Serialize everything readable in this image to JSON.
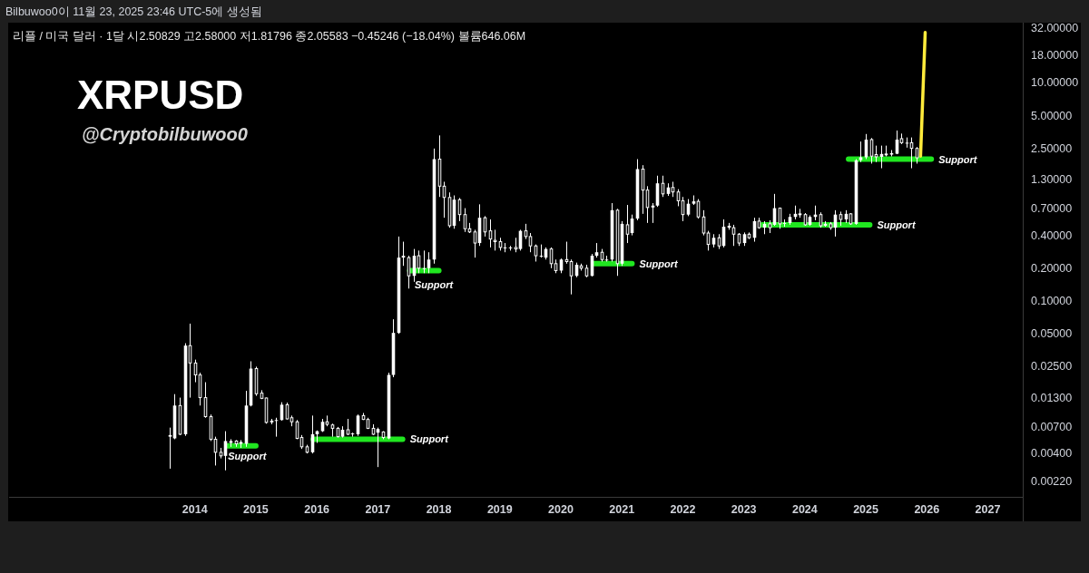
{
  "chart_data": {
    "type": "candlestick",
    "title": "XRPUSD",
    "subtitle": "@Cryptobilbuwoo0",
    "color": "#ffffff",
    "log": true,
    "xlim": [
      "2010-12-15",
      "2027-07-28"
    ],
    "xticks": [
      "2014",
      "2015",
      "2016",
      "2017",
      "2018",
      "2019",
      "2020",
      "2021",
      "2022",
      "2023",
      "2024",
      "2025",
      "2026",
      "2027"
    ],
    "ylim": [
      0.0016,
      35
    ],
    "yticks": [
      {
        "value": 0.0022,
        "label": "0.00220"
      },
      {
        "value": 0.004,
        "label": "0.00400"
      },
      {
        "value": 0.007,
        "label": "0.00700"
      },
      {
        "value": 0.013,
        "label": "0.01300"
      },
      {
        "value": 0.025,
        "label": "0.02500"
      },
      {
        "value": 0.05,
        "label": "0.05000"
      },
      {
        "value": 0.1,
        "label": "0.10000"
      },
      {
        "value": 0.2,
        "label": "0.20000"
      },
      {
        "value": 0.4,
        "label": "0.40000"
      },
      {
        "value": 0.7,
        "label": "0.70000"
      },
      {
        "value": 1.3,
        "label": "1.30000"
      },
      {
        "value": 2.5,
        "label": "2.50000"
      },
      {
        "value": 5,
        "label": "5.00000"
      },
      {
        "value": 10,
        "label": "10.00000"
      },
      {
        "value": 18,
        "label": "18.00000"
      },
      {
        "value": 32,
        "label": "32.00000"
      }
    ],
    "x": [
      "2013-08",
      "2013-09",
      "2013-10",
      "2013-11",
      "2013-12",
      "2014-01",
      "2014-02",
      "2014-03",
      "2014-04",
      "2014-05",
      "2014-06",
      "2014-07",
      "2014-08",
      "2014-09",
      "2014-10",
      "2014-11",
      "2014-12",
      "2015-01",
      "2015-02",
      "2015-03",
      "2015-04",
      "2015-05",
      "2015-06",
      "2015-07",
      "2015-08",
      "2015-09",
      "2015-10",
      "2015-11",
      "2015-12",
      "2016-01",
      "2016-02",
      "2016-03",
      "2016-04",
      "2016-05",
      "2016-06",
      "2016-07",
      "2016-08",
      "2016-09",
      "2016-10",
      "2016-11",
      "2016-12",
      "2017-01",
      "2017-02",
      "2017-03",
      "2017-04",
      "2017-05",
      "2017-06",
      "2017-07",
      "2017-08",
      "2017-09",
      "2017-10",
      "2017-11",
      "2017-12",
      "2018-01",
      "2018-02",
      "2018-03",
      "2018-04",
      "2018-05",
      "2018-06",
      "2018-07",
      "2018-08",
      "2018-09",
      "2018-10",
      "2018-11",
      "2018-12",
      "2019-01",
      "2019-02",
      "2019-03",
      "2019-04",
      "2019-05",
      "2019-06",
      "2019-07",
      "2019-08",
      "2019-09",
      "2019-10",
      "2019-11",
      "2019-12",
      "2020-01",
      "2020-02",
      "2020-03",
      "2020-04",
      "2020-05",
      "2020-06",
      "2020-07",
      "2020-08",
      "2020-09",
      "2020-10",
      "2020-11",
      "2020-12",
      "2021-01",
      "2021-02",
      "2021-03",
      "2021-04",
      "2021-05",
      "2021-06",
      "2021-07",
      "2021-08",
      "2021-09",
      "2021-10",
      "2021-11",
      "2021-12",
      "2022-01",
      "2022-02",
      "2022-03",
      "2022-04",
      "2022-05",
      "2022-06",
      "2022-07",
      "2022-08",
      "2022-09",
      "2022-10",
      "2022-11",
      "2022-12",
      "2023-01",
      "2023-02",
      "2023-03",
      "2023-04",
      "2023-05",
      "2023-06",
      "2023-07",
      "2023-08",
      "2023-09",
      "2023-10",
      "2023-11",
      "2023-12",
      "2024-01",
      "2024-02",
      "2024-03",
      "2024-04",
      "2024-05",
      "2024-06",
      "2024-07",
      "2024-08",
      "2024-09",
      "2024-10",
      "2024-11",
      "2024-12",
      "2025-01",
      "2025-02",
      "2025-03",
      "2025-04",
      "2025-05",
      "2025-06",
      "2025-07",
      "2025-08",
      "2025-09",
      "2025-10",
      "2025-11"
    ],
    "ohlc": [
      [
        0.0057,
        0.0069,
        0.0029,
        0.0059
      ],
      [
        0.0055,
        0.014,
        0.0054,
        0.011
      ],
      [
        0.011,
        0.013,
        0.0059,
        0.006
      ],
      [
        0.006,
        0.041,
        0.0058,
        0.039
      ],
      [
        0.039,
        0.062,
        0.013,
        0.027
      ],
      [
        0.027,
        0.029,
        0.018,
        0.021
      ],
      [
        0.021,
        0.022,
        0.011,
        0.013
      ],
      [
        0.013,
        0.018,
        0.0085,
        0.0087
      ],
      [
        0.0087,
        0.0091,
        0.0052,
        0.0054
      ],
      [
        0.0054,
        0.0057,
        0.0031,
        0.0041
      ],
      [
        0.0041,
        0.0045,
        0.0036,
        0.0038
      ],
      [
        0.0038,
        0.0064,
        0.0028,
        0.0052
      ],
      [
        0.005,
        0.0054,
        0.0046,
        0.0052
      ],
      [
        0.0052,
        0.0053,
        0.0046,
        0.0049
      ],
      [
        0.0049,
        0.0053,
        0.0045,
        0.0051
      ],
      [
        0.0049,
        0.015,
        0.0046,
        0.011
      ],
      [
        0.011,
        0.028,
        0.0108,
        0.024
      ],
      [
        0.024,
        0.025,
        0.0135,
        0.0141
      ],
      [
        0.0143,
        0.0152,
        0.0126,
        0.0128
      ],
      [
        0.0129,
        0.013,
        0.0075,
        0.0077
      ],
      [
        0.0077,
        0.0083,
        0.0074,
        0.008
      ],
      [
        0.008,
        0.0085,
        0.0057,
        0.0081
      ],
      [
        0.0081,
        0.0118,
        0.008,
        0.0112
      ],
      [
        0.0112,
        0.0117,
        0.0082,
        0.0083
      ],
      [
        0.0085,
        0.0089,
        0.0071,
        0.0078
      ],
      [
        0.0078,
        0.0081,
        0.0054,
        0.0055
      ],
      [
        0.0056,
        0.0059,
        0.0044,
        0.0046
      ],
      [
        0.0046,
        0.0048,
        0.004,
        0.0041
      ],
      [
        0.0041,
        0.0089,
        0.004,
        0.006
      ],
      [
        0.006,
        0.0065,
        0.005,
        0.0064
      ],
      [
        0.0064,
        0.0083,
        0.0063,
        0.0078
      ],
      [
        0.0078,
        0.0089,
        0.0071,
        0.0074
      ],
      [
        0.0073,
        0.0075,
        0.0057,
        0.0068
      ],
      [
        0.0068,
        0.007,
        0.0056,
        0.0057
      ],
      [
        0.0057,
        0.0071,
        0.0056,
        0.0066
      ],
      [
        0.0066,
        0.0083,
        0.0059,
        0.006
      ],
      [
        0.006,
        0.0062,
        0.0057,
        0.0061
      ],
      [
        0.006,
        0.0091,
        0.0058,
        0.0089
      ],
      [
        0.0089,
        0.0094,
        0.0081,
        0.0082
      ],
      [
        0.0082,
        0.0085,
        0.0067,
        0.0068
      ],
      [
        0.0068,
        0.0074,
        0.0059,
        0.006
      ],
      [
        0.0062,
        0.0069,
        0.003,
        0.0067
      ],
      [
        0.0063,
        0.0064,
        0.0054,
        0.0056
      ],
      [
        0.0055,
        0.022,
        0.0054,
        0.021
      ],
      [
        0.021,
        0.068,
        0.02,
        0.051
      ],
      [
        0.051,
        0.39,
        0.05,
        0.25
      ],
      [
        0.25,
        0.35,
        0.21,
        0.26
      ],
      [
        0.25,
        0.26,
        0.13,
        0.17
      ],
      [
        0.17,
        0.3,
        0.15,
        0.26
      ],
      [
        0.26,
        0.29,
        0.18,
        0.2
      ],
      [
        0.2,
        0.29,
        0.18,
        0.2
      ],
      [
        0.2,
        0.28,
        0.18,
        0.24
      ],
      [
        0.24,
        2.5,
        0.22,
        2.0
      ],
      [
        2.0,
        3.3,
        0.9,
        1.13
      ],
      [
        1.13,
        1.24,
        0.58,
        0.89
      ],
      [
        0.89,
        0.99,
        0.47,
        0.49
      ],
      [
        0.49,
        0.93,
        0.46,
        0.85
      ],
      [
        0.85,
        0.88,
        0.54,
        0.62
      ],
      [
        0.62,
        0.71,
        0.43,
        0.46
      ],
      [
        0.46,
        0.52,
        0.42,
        0.43
      ],
      [
        0.43,
        0.45,
        0.25,
        0.34
      ],
      [
        0.34,
        0.77,
        0.32,
        0.58
      ],
      [
        0.58,
        0.6,
        0.39,
        0.43
      ],
      [
        0.44,
        0.56,
        0.31,
        0.37
      ],
      [
        0.36,
        0.45,
        0.29,
        0.35
      ],
      [
        0.35,
        0.38,
        0.29,
        0.31
      ],
      [
        0.31,
        0.34,
        0.28,
        0.31
      ],
      [
        0.31,
        0.32,
        0.29,
        0.31
      ],
      [
        0.31,
        0.38,
        0.28,
        0.3
      ],
      [
        0.3,
        0.45,
        0.29,
        0.44
      ],
      [
        0.44,
        0.51,
        0.37,
        0.39
      ],
      [
        0.39,
        0.42,
        0.28,
        0.32
      ],
      [
        0.32,
        0.33,
        0.23,
        0.26
      ],
      [
        0.26,
        0.33,
        0.25,
        0.26
      ],
      [
        0.25,
        0.31,
        0.24,
        0.3
      ],
      [
        0.3,
        0.31,
        0.2,
        0.22
      ],
      [
        0.22,
        0.24,
        0.18,
        0.19
      ],
      [
        0.19,
        0.245,
        0.18,
        0.24
      ],
      [
        0.24,
        0.35,
        0.22,
        0.23
      ],
      [
        0.23,
        0.24,
        0.115,
        0.17
      ],
      [
        0.17,
        0.225,
        0.165,
        0.215
      ],
      [
        0.21,
        0.22,
        0.19,
        0.2
      ],
      [
        0.2,
        0.215,
        0.165,
        0.17
      ],
      [
        0.17,
        0.27,
        0.168,
        0.26
      ],
      [
        0.26,
        0.34,
        0.25,
        0.28
      ],
      [
        0.28,
        0.3,
        0.23,
        0.24
      ],
      [
        0.24,
        0.26,
        0.23,
        0.24
      ],
      [
        0.24,
        0.79,
        0.23,
        0.68
      ],
      [
        0.68,
        0.7,
        0.17,
        0.22
      ],
      [
        0.22,
        0.54,
        0.21,
        0.51
      ],
      [
        0.5,
        0.76,
        0.34,
        0.41
      ],
      [
        0.42,
        0.62,
        0.4,
        0.57
      ],
      [
        0.57,
        2.0,
        0.55,
        1.62
      ],
      [
        1.62,
        1.76,
        0.63,
        1.04
      ],
      [
        1.04,
        1.13,
        0.52,
        0.72
      ],
      [
        0.72,
        0.79,
        0.52,
        0.75
      ],
      [
        0.75,
        1.41,
        0.73,
        1.2
      ],
      [
        1.2,
        1.41,
        0.9,
        0.96
      ],
      [
        0.96,
        1.2,
        0.92,
        1.1
      ],
      [
        1.1,
        1.24,
        0.9,
        1.0
      ],
      [
        1.0,
        1.06,
        0.74,
        0.83
      ],
      [
        0.83,
        0.9,
        0.54,
        0.62
      ],
      [
        0.62,
        0.86,
        0.6,
        0.78
      ],
      [
        0.78,
        0.93,
        0.76,
        0.82
      ],
      [
        0.82,
        0.86,
        0.57,
        0.59
      ],
      [
        0.59,
        0.68,
        0.4,
        0.42
      ],
      [
        0.42,
        0.44,
        0.29,
        0.33
      ],
      [
        0.33,
        0.41,
        0.31,
        0.38
      ],
      [
        0.38,
        0.41,
        0.3,
        0.32
      ],
      [
        0.32,
        0.56,
        0.31,
        0.48
      ],
      [
        0.47,
        0.52,
        0.45,
        0.49
      ],
      [
        0.47,
        0.5,
        0.32,
        0.41
      ],
      [
        0.41,
        0.42,
        0.32,
        0.34
      ],
      [
        0.34,
        0.425,
        0.32,
        0.41
      ],
      [
        0.41,
        0.425,
        0.37,
        0.38
      ],
      [
        0.38,
        0.58,
        0.35,
        0.54
      ],
      [
        0.54,
        0.58,
        0.46,
        0.47
      ],
      [
        0.47,
        0.54,
        0.41,
        0.51
      ],
      [
        0.51,
        0.55,
        0.42,
        0.47
      ],
      [
        0.5,
        0.96,
        0.49,
        0.71
      ],
      [
        0.71,
        0.72,
        0.46,
        0.51
      ],
      [
        0.51,
        0.56,
        0.48,
        0.52
      ],
      [
        0.52,
        0.63,
        0.5,
        0.59
      ],
      [
        0.59,
        0.75,
        0.56,
        0.63
      ],
      [
        0.63,
        0.7,
        0.58,
        0.62
      ],
      [
        0.62,
        0.64,
        0.49,
        0.5
      ],
      [
        0.5,
        0.61,
        0.49,
        0.59
      ],
      [
        0.59,
        0.75,
        0.55,
        0.62
      ],
      [
        0.62,
        0.65,
        0.47,
        0.49
      ],
      [
        0.49,
        0.54,
        0.48,
        0.51
      ],
      [
        0.51,
        0.53,
        0.45,
        0.47
      ],
      [
        0.47,
        0.68,
        0.39,
        0.62
      ],
      [
        0.62,
        0.66,
        0.49,
        0.56
      ],
      [
        0.56,
        0.68,
        0.52,
        0.63
      ],
      [
        0.63,
        0.64,
        0.5,
        0.51
      ],
      [
        0.51,
        2.0,
        0.5,
        1.95
      ],
      [
        1.96,
        2.9,
        1.88,
        2.08
      ],
      [
        2.08,
        3.4,
        2.0,
        3.02
      ],
      [
        3.02,
        3.12,
        1.82,
        2.13
      ],
      [
        2.2,
        2.66,
        1.88,
        2.1
      ],
      [
        2.1,
        2.66,
        1.65,
        2.23
      ],
      [
        2.23,
        2.66,
        2.12,
        2.2
      ],
      [
        2.2,
        2.42,
        2.12,
        2.27
      ],
      [
        2.24,
        3.66,
        2.22,
        3.02
      ],
      [
        3.08,
        3.43,
        2.75,
        2.83
      ],
      [
        2.78,
        3.16,
        2.55,
        2.83
      ],
      [
        2.83,
        3.16,
        1.65,
        2.51
      ],
      [
        2.50829,
        2.58,
        1.81796,
        2.05583
      ]
    ],
    "series": [
      {
        "type": "line",
        "color": "#20e620",
        "x": [
          "2014-07-16",
          "2015-01-01"
        ],
        "values": [
          0.0047,
          0.0047
        ]
      },
      {
        "type": "line",
        "color": "#20e620",
        "x": [
          "2015-12-10",
          "2017-05-28"
        ],
        "values": [
          0.0054,
          0.0054
        ]
      },
      {
        "type": "line",
        "color": "#20e620",
        "x": [
          "2017-07-10",
          "2018-01-01"
        ],
        "values": [
          0.19,
          0.19
        ]
      },
      {
        "type": "line",
        "color": "#20e620",
        "x": [
          "2020-07-19",
          "2021-03-01"
        ],
        "values": [
          0.22,
          0.22
        ]
      },
      {
        "type": "line",
        "color": "#20e620",
        "x": [
          "2024-09-19",
          "2026-01-28"
        ],
        "values": [
          2.0,
          2.0
        ]
      },
      {
        "type": "line",
        "color": "#20e620",
        "x": [
          "2023-04-19",
          "2025-01-25"
        ],
        "values": [
          0.5,
          0.5
        ]
      },
      {
        "type": "line",
        "color": "#ffeb3b",
        "x": [
          "2025-11-24",
          "2025-12-22"
        ],
        "values": [
          2.13,
          29
        ]
      }
    ],
    "annotations": [
      "Bilbuwoo0이 11월 23, 2025 23:46 UTC-5에 생성됨",
      "리플 / 미국 달러 · 1달 시2.50829 고2.58000 저1.81796 종2.05583 −0.45246 (−18.04%) 볼륨646.06M",
      {
        "text": "Support",
        "x": "2014-06-04",
        "y": 0.0038
      },
      {
        "text": "Support",
        "x": "2017-05-28",
        "y": 0.0054
      },
      {
        "text": "Support",
        "x": "2017-06-26",
        "y": 0.14
      },
      {
        "text": "Support",
        "x": "2021-03-01",
        "y": 0.22
      },
      {
        "text": "Support",
        "x": "2025-01-25",
        "y": 0.5
      },
      {
        "text": "Support",
        "x": "2026-01-28",
        "y": 2.0
      }
    ]
  }
}
